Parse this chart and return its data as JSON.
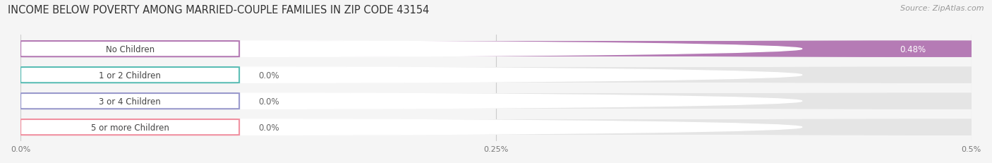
{
  "title": "INCOME BELOW POVERTY AMONG MARRIED-COUPLE FAMILIES IN ZIP CODE 43154",
  "source": "Source: ZipAtlas.com",
  "categories": [
    "No Children",
    "1 or 2 Children",
    "3 or 4 Children",
    "5 or more Children"
  ],
  "values": [
    0.48,
    0.0,
    0.0,
    0.0
  ],
  "bar_colors": [
    "#b57bb5",
    "#5bbdb5",
    "#9999cc",
    "#f090a0"
  ],
  "xlim_max": 0.5,
  "xticks": [
    0.0,
    0.25,
    0.5
  ],
  "xtick_labels": [
    "0.0%",
    "0.25%",
    "0.5%"
  ],
  "background_color": "#f5f5f5",
  "bar_bg_color": "#e5e5e5",
  "title_fontsize": 10.5,
  "source_fontsize": 8,
  "label_fontsize": 8.5,
  "value_fontsize": 8.5,
  "tick_fontsize": 8
}
